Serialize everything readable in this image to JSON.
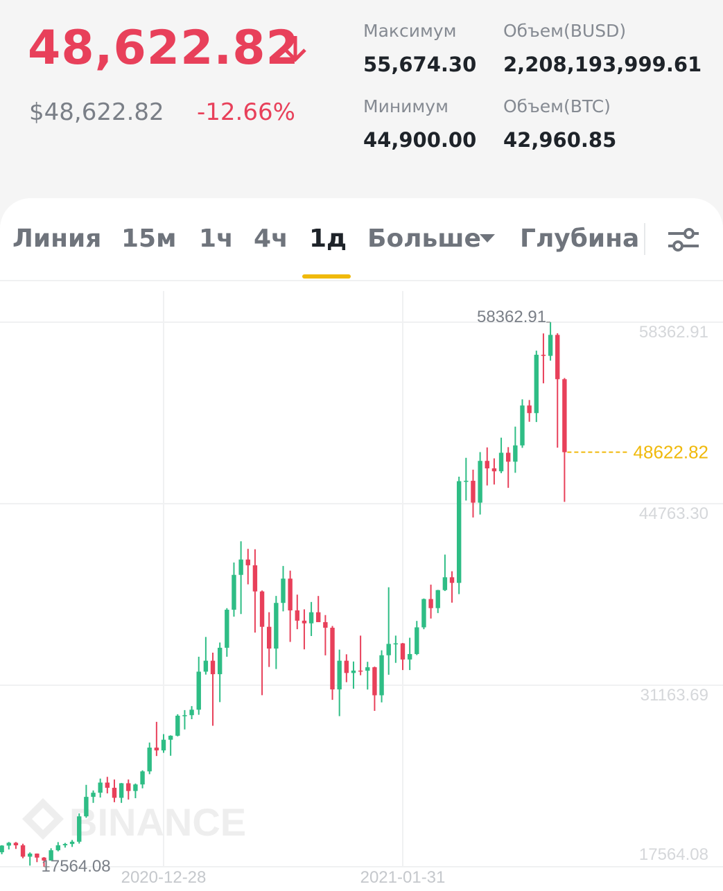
{
  "header": {
    "price": "48,622.82",
    "usd_price": "$48,622.82",
    "change": "-12.66%",
    "stats": [
      {
        "label": "Максимум",
        "value": "55,674.30"
      },
      {
        "label": "Объем(BUSD)",
        "value": "2,208,193,999.61"
      },
      {
        "label": "Минимум",
        "value": "44,900.00"
      },
      {
        "label": "Объем(BTC)",
        "value": "42,960.85"
      }
    ]
  },
  "tabs": [
    "Линия",
    "15м",
    "1ч",
    "4ч",
    "1д",
    "Больше",
    "Глубина"
  ],
  "chart_data": {
    "type": "candlestick",
    "watermark": "BINANCE",
    "x": [
      "2020-12-05",
      "2020-12-06",
      "2020-12-07",
      "2020-12-08",
      "2020-12-09",
      "2020-12-10",
      "2020-12-11",
      "2020-12-12",
      "2020-12-13",
      "2020-12-14",
      "2020-12-15",
      "2020-12-16",
      "2020-12-17",
      "2020-12-18",
      "2020-12-19",
      "2020-12-20",
      "2020-12-21",
      "2020-12-22",
      "2020-12-23",
      "2020-12-24",
      "2020-12-25",
      "2020-12-26",
      "2020-12-27",
      "2020-12-28",
      "2020-12-29",
      "2020-12-30",
      "2020-12-31",
      "2021-01-01",
      "2021-01-02",
      "2021-01-03",
      "2021-01-04",
      "2021-01-05",
      "2021-01-06",
      "2021-01-07",
      "2021-01-08",
      "2021-01-09",
      "2021-01-10",
      "2021-01-11",
      "2021-01-12",
      "2021-01-13",
      "2021-01-14",
      "2021-01-15",
      "2021-01-16",
      "2021-01-17",
      "2021-01-18",
      "2021-01-19",
      "2021-01-20",
      "2021-01-21",
      "2021-01-22",
      "2021-01-23",
      "2021-01-24",
      "2021-01-25",
      "2021-01-26",
      "2021-01-27",
      "2021-01-28",
      "2021-01-29",
      "2021-01-30",
      "2021-01-31",
      "2021-02-01",
      "2021-02-02",
      "2021-02-03",
      "2021-02-04",
      "2021-02-05",
      "2021-02-06",
      "2021-02-07",
      "2021-02-08",
      "2021-02-09",
      "2021-02-10",
      "2021-02-11",
      "2021-02-12",
      "2021-02-13",
      "2021-02-14",
      "2021-02-15",
      "2021-02-16",
      "2021-02-17",
      "2021-02-18",
      "2021-02-19",
      "2021-02-20",
      "2021-02-21",
      "2021-02-22",
      "2021-02-23"
    ],
    "open": [
      18650,
      19150,
      19360,
      19170,
      18320,
      18550,
      18250,
      18030,
      18800,
      19170,
      19270,
      19440,
      21340,
      22800,
      23110,
      23870,
      23480,
      22730,
      23820,
      23240,
      23730,
      24710,
      26490,
      26280,
      27080,
      27380,
      28880,
      28920,
      29330,
      32180,
      33000,
      31990,
      33970,
      36820,
      39430,
      40580,
      40150,
      38190,
      35540,
      33910,
      37330,
      39150,
      36770,
      36000,
      35800,
      36630,
      35890,
      35470,
      30850,
      33000,
      32080,
      32260,
      32250,
      32510,
      30410,
      33410,
      34260,
      34300,
      33090,
      33500,
      35500,
      37620,
      36940,
      38290,
      39250,
      38830,
      46450,
      46480,
      44840,
      47970,
      47410,
      47190,
      48580,
      47910,
      49130,
      52120,
      51550,
      55920,
      55840,
      57410,
      54090
    ],
    "high": [
      19180,
      19420,
      19420,
      19290,
      18640,
      18560,
      18290,
      18950,
      19410,
      19350,
      19570,
      21560,
      23700,
      23280,
      24170,
      24300,
      24100,
      23840,
      24100,
      23800,
      24790,
      26870,
      28420,
      27500,
      27410,
      28990,
      29300,
      29600,
      33300,
      34780,
      33600,
      34360,
      36940,
      40360,
      41950,
      41380,
      41350,
      38260,
      36630,
      37850,
      40100,
      39750,
      37950,
      36850,
      37400,
      37850,
      36420,
      35600,
      33830,
      33480,
      32940,
      34880,
      32920,
      32560,
      33780,
      38500,
      34880,
      34330,
      34720,
      35980,
      37660,
      38700,
      38310,
      40950,
      39700,
      46790,
      48200,
      47310,
      48630,
      48980,
      48160,
      49710,
      49000,
      50540,
      52580,
      52530,
      56230,
      57520,
      58362.91,
      57530,
      54180
    ],
    "low": [
      18500,
      18860,
      18900,
      18200,
      17650,
      17910,
      17564.08,
      18020,
      18720,
      19000,
      19050,
      19300,
      21230,
      22350,
      22750,
      23060,
      22400,
      22350,
      22600,
      22700,
      23440,
      24500,
      25860,
      26100,
      25880,
      27330,
      27850,
      28620,
      28950,
      31960,
      28130,
      29900,
      33300,
      36300,
      36500,
      38720,
      35110,
      30420,
      32530,
      32380,
      36700,
      34410,
      35360,
      33850,
      34850,
      35900,
      33400,
      30070,
      28850,
      31390,
      30900,
      31910,
      30840,
      29240,
      29880,
      31950,
      32840,
      32300,
      32300,
      33420,
      35360,
      36160,
      36570,
      38220,
      37350,
      37990,
      45000,
      43730,
      43950,
      46130,
      46200,
      47050,
      45950,
      47080,
      48950,
      50900,
      50880,
      53780,
      55480,
      48960,
      44900
    ],
    "close": [
      19150,
      19360,
      19170,
      18320,
      18550,
      18250,
      18030,
      18800,
      19170,
      19270,
      19440,
      21340,
      22800,
      23110,
      23870,
      23480,
      22730,
      23820,
      23240,
      23730,
      24710,
      26490,
      26280,
      27080,
      27380,
      28880,
      28920,
      29330,
      32180,
      33000,
      31990,
      33970,
      36820,
      39430,
      40580,
      40150,
      38190,
      35540,
      33910,
      37330,
      39150,
      36770,
      36000,
      35800,
      36630,
      35890,
      35470,
      30850,
      33000,
      32080,
      32260,
      32250,
      32510,
      30410,
      33410,
      34260,
      34300,
      33090,
      33500,
      35500,
      37620,
      36940,
      38290,
      39250,
      38830,
      46450,
      46480,
      44840,
      47970,
      47410,
      47190,
      48580,
      47910,
      49130,
      52120,
      51550,
      55920,
      55840,
      57410,
      54090,
      48622.82
    ],
    "up_color": "#2ebd85",
    "down_color": "#e8405a",
    "ylim": [
      17564.08,
      60698
    ],
    "yticks": [
      58362.91,
      {
        "value": 44763.3,
        "label": "44763.30"
      },
      31163.69,
      17564.08
    ],
    "xticks": [
      "2020-12-28",
      "2021-01-31"
    ],
    "grid": true,
    "high_label": "58362.91",
    "low_label": "17564.08",
    "last_price": 48622.82,
    "last_price_color": "#f0b90b"
  }
}
